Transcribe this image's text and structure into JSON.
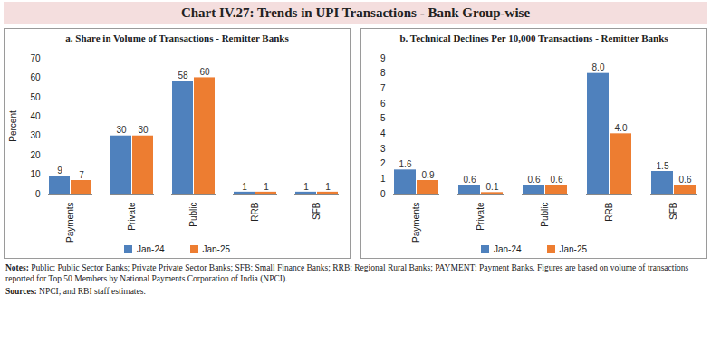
{
  "title": "Chart IV.27: Trends in UPI Transactions - Bank Group-wise",
  "chart_data": [
    {
      "type": "bar",
      "title": "a. Share in Volume of Transactions - Remitter Banks",
      "categories": [
        "Payments",
        "Private",
        "Public",
        "RRB",
        "SFB"
      ],
      "series": [
        {
          "name": "Jan-24",
          "color": "#4f81bd",
          "values": [
            9,
            30,
            58,
            1,
            1
          ]
        },
        {
          "name": "Jan-25",
          "color": "#ed7d31",
          "values": [
            7,
            30,
            60,
            1,
            1
          ]
        }
      ],
      "y_label": "Percent",
      "ylim": [
        0,
        70
      ],
      "yticks": [
        0,
        10,
        20,
        30,
        40,
        50,
        60,
        70
      ],
      "data_labels": true,
      "legend": "bottom",
      "grid": false
    },
    {
      "type": "bar",
      "title": "b. Technical Declines Per 10,000 Transactions - Remitter Banks",
      "categories": [
        "Payments",
        "Private",
        "Public",
        "RRB",
        "SFB"
      ],
      "series": [
        {
          "name": "Jan-24",
          "color": "#4f81bd",
          "values": [
            1.6,
            0.6,
            0.6,
            8.0,
            1.5
          ],
          "value_labels": [
            "1.6",
            "0.6",
            "0.6",
            "8.0",
            "1.5"
          ]
        },
        {
          "name": "Jan-25",
          "color": "#ed7d31",
          "values": [
            0.9,
            0.1,
            0.6,
            4.0,
            0.6
          ],
          "value_labels": [
            "0.9",
            "0.1",
            "0.6",
            "4.0",
            "0.6"
          ]
        }
      ],
      "ylim": [
        0,
        9
      ],
      "yticks": [
        0,
        1,
        2,
        3,
        4,
        5,
        6,
        7,
        8,
        9
      ],
      "data_labels": true,
      "legend": "bottom",
      "grid": false
    }
  ],
  "notes": "Notes: Public: Public Sector Banks; Private Private Sector Banks; SFB: Small Finance Banks; RRB: Regional Rural Banks; PAYMENT: Payment Banks. Figures are based on volume of transactions reported for Top 50 Members by National Payments Corporation of India (NPCI).",
  "sources": "Sources: NPCI; and RBI staff estimates."
}
